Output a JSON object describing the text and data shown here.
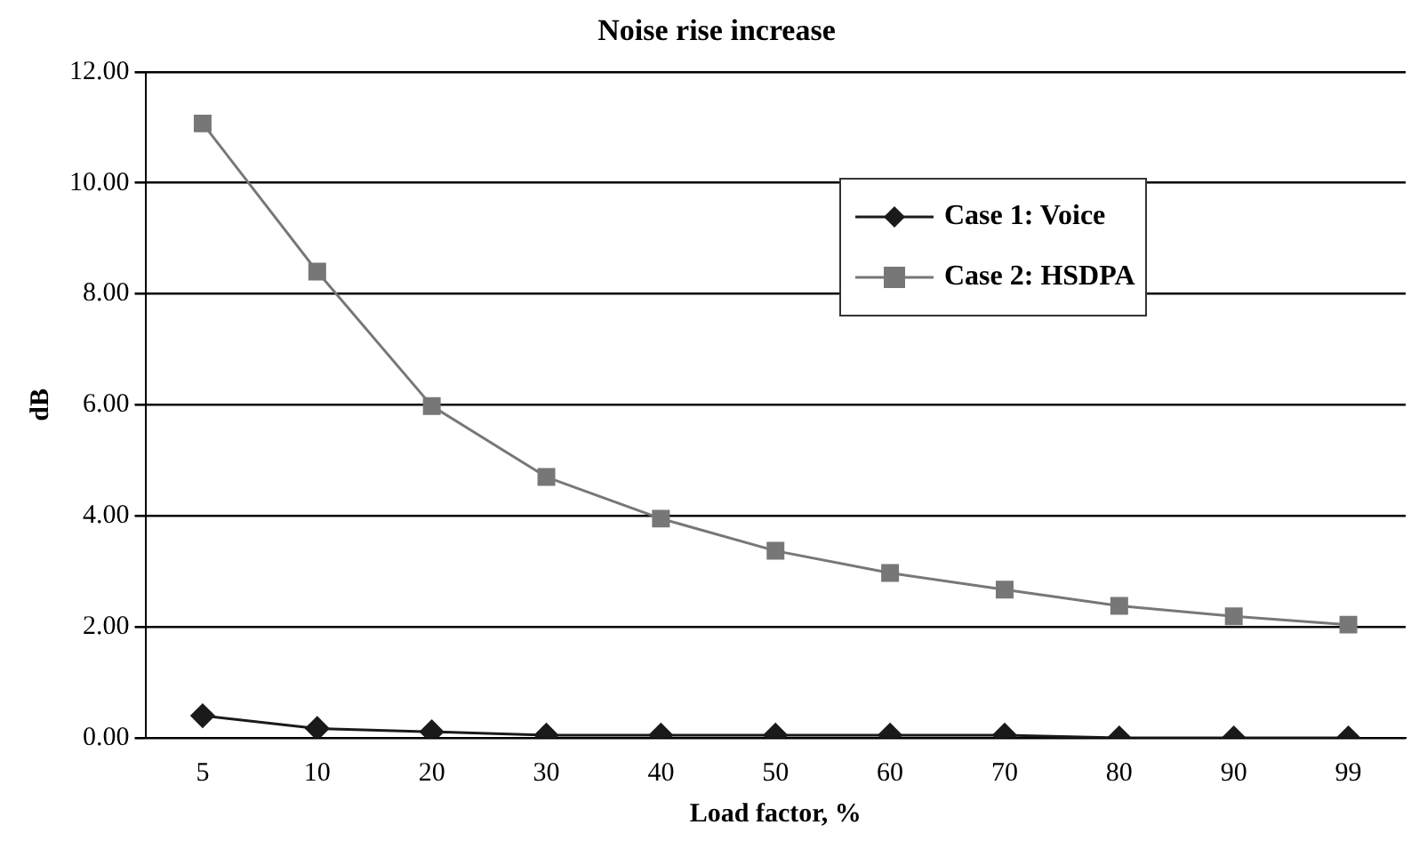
{
  "chart_data": {
    "type": "line",
    "title": "Noise rise increase",
    "xlabel": "Load factor, %",
    "ylabel": "dB",
    "categories": [
      "5",
      "10",
      "20",
      "30",
      "40",
      "50",
      "60",
      "70",
      "80",
      "90",
      "99"
    ],
    "series": [
      {
        "name": "Case 1: Voice",
        "color": "#1a1a1a",
        "marker": "diamond",
        "values": [
          0.4,
          0.17,
          0.11,
          0.05,
          0.05,
          0.05,
          0.05,
          0.05,
          0.0,
          0.0,
          0.0
        ]
      },
      {
        "name": "Case 2: HSDPA",
        "color": "#777777",
        "marker": "square",
        "values": [
          11.07,
          8.4,
          5.98,
          4.7,
          3.95,
          3.37,
          2.97,
          2.67,
          2.38,
          2.19,
          2.04
        ]
      }
    ],
    "ylim": [
      0,
      12
    ],
    "yticks": [
      {
        "value": 0,
        "label": "0.00"
      },
      {
        "value": 2,
        "label": "2.00"
      },
      {
        "value": 4,
        "label": "4.00"
      },
      {
        "value": 6,
        "label": "6.00"
      },
      {
        "value": 8,
        "label": "8.00"
      },
      {
        "value": 10,
        "label": "10.00"
      },
      {
        "value": 12,
        "label": "12.00"
      }
    ],
    "grid": "y",
    "legend": "top right",
    "line_style": "solid"
  }
}
